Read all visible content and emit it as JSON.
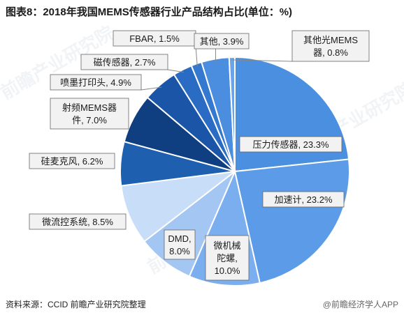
{
  "header": {
    "title": "图表8：2018年我国MEMS传感器行业产品结构占比(单位：%)"
  },
  "footer": {
    "source": "资料来源：CCID 前瞻产业研究院整理",
    "brand": "@前瞻经济学人APP"
  },
  "colors": {
    "label_box_fill": "#f2f2f2",
    "label_box_stroke": "#666666",
    "slice_stroke": "#ffffff"
  },
  "chart_data": {
    "type": "pie",
    "title": "图表8：2018年我国MEMS传感器行业产品结构占比(单位：%)",
    "unit": "%",
    "start": "12 o'clock, clockwise",
    "slices": [
      {
        "label": "压力传感器",
        "value": 23.3,
        "display": "压力传感器, 23.3%",
        "color": "#4a8fe0"
      },
      {
        "label": "加速计",
        "value": 23.2,
        "display": "加速计, 23.2%",
        "color": "#5c9be8"
      },
      {
        "label": "微机械陀螺",
        "value": 10.0,
        "display": "微机械陀螺, 10.0%",
        "color": "#7aaeee"
      },
      {
        "label": "DMD",
        "value": 8.0,
        "display": "DMD, 8.0%",
        "color": "#a3c6f3"
      },
      {
        "label": "微流控系统",
        "value": 8.5,
        "display": "微流控系统, 8.5%",
        "color": "#c8ddf7"
      },
      {
        "label": "硅麦克风",
        "value": 6.2,
        "display": "硅麦克风, 6.2%",
        "color": "#1f5fb0"
      },
      {
        "label": "射频MEMS器件",
        "value": 7.0,
        "display": "射频MEMS器件, 7.0%",
        "color": "#0f3f80"
      },
      {
        "label": "喷墨打印头",
        "value": 4.9,
        "display": "喷墨打印头, 4.9%",
        "color": "#1a55a8"
      },
      {
        "label": "磁传感器",
        "value": 2.7,
        "display": "磁传感器, 2.7%",
        "color": "#2a6cc4"
      },
      {
        "label": "FBAR",
        "value": 1.5,
        "display": "FBAR, 1.5%",
        "color": "#3478cf"
      },
      {
        "label": "其他",
        "value": 3.9,
        "display": "其他, 3.9%",
        "color": "#4b8ee0"
      },
      {
        "label": "其他光MEMS器",
        "value": 0.8,
        "display": "其他光MEMS器, 0.8%",
        "color": "#6aa3e8"
      }
    ]
  }
}
